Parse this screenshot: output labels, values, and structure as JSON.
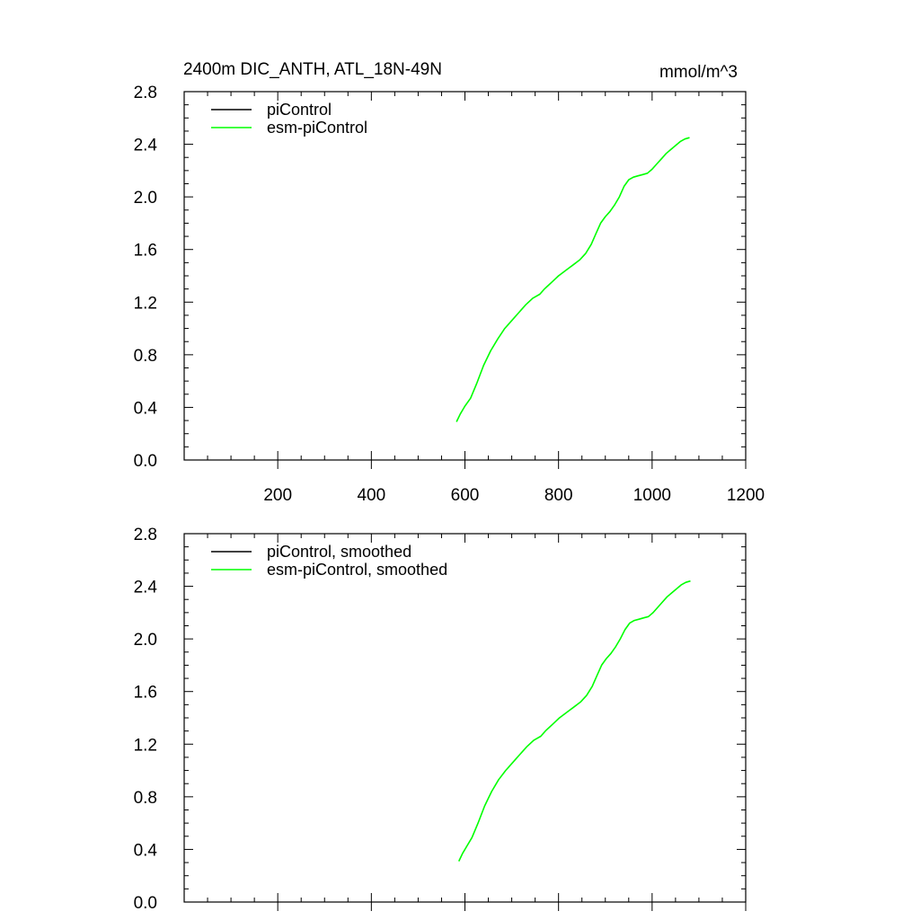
{
  "chart_data": [
    {
      "type": "line",
      "title_left": "2400m DIC_ANTH, ATL_18N-49N",
      "title_right": "mmol/m^3",
      "xlim": [
        0,
        1200
      ],
      "ylim": [
        0,
        2.8
      ],
      "x_ticks": [
        200,
        400,
        600,
        800,
        1000,
        1200
      ],
      "x_tick_labels": [
        "200",
        "400",
        "600",
        "800",
        "1000",
        "1200"
      ],
      "show_x_tick_labels": true,
      "y_ticks": [
        0,
        0.4,
        0.8,
        1.2,
        1.6,
        2.0,
        2.4,
        2.8
      ],
      "y_tick_labels": [
        "0.0",
        "0.4",
        "0.8",
        "1.2",
        "1.6",
        "2.0",
        "2.4",
        "2.8"
      ],
      "legend_position": "top-left",
      "grid": false,
      "series": [
        {
          "name": "piControl",
          "color": "#000000",
          "x": [],
          "y": []
        },
        {
          "name": "esm-piControl",
          "color": "#00ff00",
          "x": [
            582,
            590,
            600,
            612,
            625,
            640,
            655,
            670,
            685,
            700,
            715,
            730,
            745,
            760,
            770,
            785,
            800,
            815,
            830,
            845,
            858,
            870,
            880,
            890,
            900,
            910,
            920,
            930,
            940,
            950,
            960,
            970,
            980,
            990,
            1000,
            1010,
            1020,
            1030,
            1040,
            1050,
            1060,
            1070,
            1080
          ],
          "y": [
            0.29,
            0.35,
            0.41,
            0.47,
            0.58,
            0.72,
            0.83,
            0.92,
            1.0,
            1.06,
            1.12,
            1.18,
            1.23,
            1.26,
            1.3,
            1.35,
            1.4,
            1.44,
            1.48,
            1.52,
            1.57,
            1.64,
            1.72,
            1.8,
            1.85,
            1.89,
            1.94,
            2.0,
            2.08,
            2.13,
            2.15,
            2.16,
            2.17,
            2.18,
            2.21,
            2.25,
            2.29,
            2.33,
            2.36,
            2.39,
            2.42,
            2.44,
            2.45
          ]
        }
      ]
    },
    {
      "type": "line",
      "xlim": [
        0,
        1200
      ],
      "ylim": [
        0,
        2.8
      ],
      "x_ticks": [
        200,
        400,
        600,
        800,
        1000,
        1200
      ],
      "show_x_tick_labels": false,
      "y_ticks": [
        0,
        0.4,
        0.8,
        1.2,
        1.6,
        2.0,
        2.4,
        2.8
      ],
      "y_tick_labels": [
        "0.0",
        "0.4",
        "0.8",
        "1.2",
        "1.6",
        "2.0",
        "2.4",
        "2.8"
      ],
      "legend_position": "top-left",
      "grid": false,
      "series": [
        {
          "name": "piControl, smoothed",
          "color": "#000000",
          "x": [],
          "y": []
        },
        {
          "name": "esm-piControl, smoothed",
          "color": "#00ff00",
          "x": [
            587,
            595,
            605,
            615,
            628,
            642,
            657,
            672,
            687,
            702,
            717,
            732,
            747,
            762,
            772,
            787,
            802,
            817,
            832,
            847,
            860,
            872,
            882,
            892,
            902,
            912,
            922,
            932,
            942,
            952,
            962,
            972,
            982,
            992,
            1002,
            1012,
            1022,
            1032,
            1042,
            1052,
            1062,
            1072,
            1082
          ],
          "y": [
            0.31,
            0.37,
            0.43,
            0.49,
            0.6,
            0.73,
            0.84,
            0.93,
            1.0,
            1.06,
            1.12,
            1.18,
            1.23,
            1.26,
            1.3,
            1.35,
            1.4,
            1.44,
            1.48,
            1.52,
            1.57,
            1.64,
            1.72,
            1.8,
            1.85,
            1.89,
            1.94,
            2.0,
            2.07,
            2.12,
            2.14,
            2.15,
            2.16,
            2.17,
            2.2,
            2.24,
            2.28,
            2.32,
            2.35,
            2.38,
            2.41,
            2.43,
            2.44
          ]
        }
      ]
    }
  ]
}
